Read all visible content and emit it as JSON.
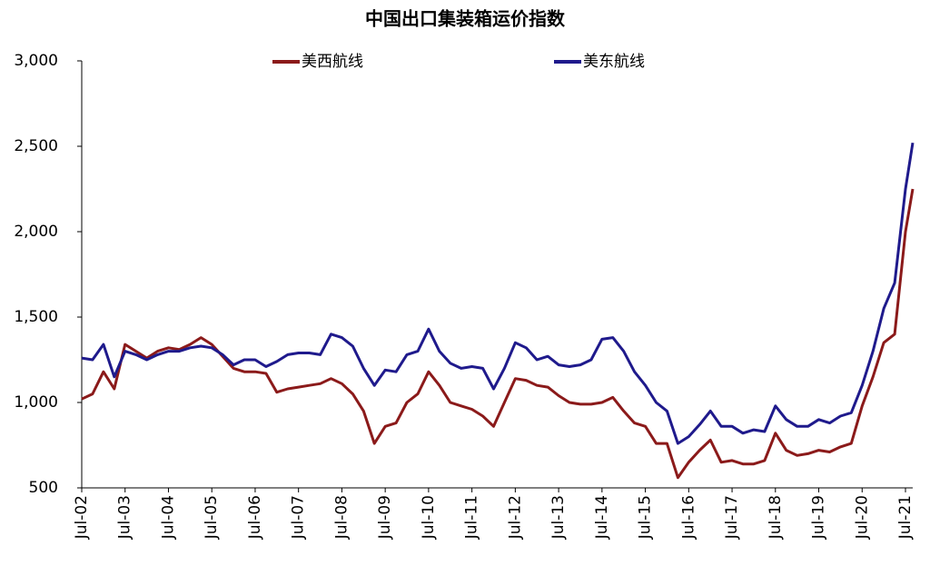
{
  "chart_data": {
    "type": "line",
    "title": "中国出口集装箱运价指数",
    "x": [
      "2002-07",
      "2002-10",
      "2003-01",
      "2003-04",
      "2003-07",
      "2003-10",
      "2004-01",
      "2004-04",
      "2004-07",
      "2004-10",
      "2005-01",
      "2005-04",
      "2005-07",
      "2005-10",
      "2006-01",
      "2006-04",
      "2006-07",
      "2006-10",
      "2007-01",
      "2007-04",
      "2007-07",
      "2007-10",
      "2008-01",
      "2008-04",
      "2008-07",
      "2008-10",
      "2009-01",
      "2009-04",
      "2009-07",
      "2009-10",
      "2010-01",
      "2010-04",
      "2010-07",
      "2010-10",
      "2011-01",
      "2011-04",
      "2011-07",
      "2011-10",
      "2012-01",
      "2012-04",
      "2012-07",
      "2012-10",
      "2013-01",
      "2013-04",
      "2013-07",
      "2013-10",
      "2014-01",
      "2014-04",
      "2014-07",
      "2014-10",
      "2015-01",
      "2015-04",
      "2015-07",
      "2015-10",
      "2016-01",
      "2016-04",
      "2016-07",
      "2016-10",
      "2017-01",
      "2017-04",
      "2017-07",
      "2017-10",
      "2018-01",
      "2018-04",
      "2018-07",
      "2018-10",
      "2019-01",
      "2019-04",
      "2019-07",
      "2019-10",
      "2020-01",
      "2020-04",
      "2020-07",
      "2020-10",
      "2021-01",
      "2021-04",
      "2021-07",
      "2021-09"
    ],
    "series": [
      {
        "name": "美西航线",
        "color": "#8b1a1a",
        "values": [
          1020,
          1050,
          1180,
          1080,
          1340,
          1300,
          1260,
          1300,
          1320,
          1310,
          1340,
          1380,
          1340,
          1270,
          1200,
          1180,
          1180,
          1170,
          1060,
          1080,
          1090,
          1100,
          1110,
          1140,
          1110,
          1050,
          950,
          760,
          860,
          880,
          1000,
          1050,
          1180,
          1100,
          1000,
          980,
          960,
          920,
          860,
          1000,
          1140,
          1130,
          1100,
          1090,
          1040,
          1000,
          990,
          990,
          1000,
          1030,
          950,
          880,
          860,
          760,
          760,
          560,
          650,
          720,
          780,
          650,
          660,
          640,
          640,
          660,
          820,
          720,
          690,
          700,
          720,
          710,
          740,
          760,
          980,
          1150,
          1350,
          1400,
          2000,
          2250
        ]
      },
      {
        "name": "美东航线",
        "color": "#1f1a8c",
        "values": [
          1260,
          1250,
          1340,
          1150,
          1300,
          1280,
          1250,
          1280,
          1300,
          1300,
          1320,
          1330,
          1320,
          1280,
          1220,
          1250,
          1250,
          1210,
          1240,
          1280,
          1290,
          1290,
          1280,
          1400,
          1380,
          1330,
          1200,
          1100,
          1190,
          1180,
          1280,
          1300,
          1430,
          1300,
          1230,
          1200,
          1210,
          1200,
          1080,
          1200,
          1350,
          1320,
          1250,
          1270,
          1220,
          1210,
          1220,
          1250,
          1370,
          1380,
          1300,
          1180,
          1100,
          1000,
          950,
          760,
          800,
          870,
          950,
          860,
          860,
          820,
          840,
          830,
          980,
          900,
          860,
          860,
          900,
          880,
          920,
          940,
          1100,
          1300,
          1550,
          1700,
          2250,
          2520
        ]
      }
    ],
    "xlim": [
      "2002-07",
      "2021-09"
    ],
    "xticks": [
      {
        "value": "2002-07",
        "label": "Jul-02"
      },
      {
        "value": "2003-07",
        "label": "Jul-03"
      },
      {
        "value": "2004-07",
        "label": "Jul-04"
      },
      {
        "value": "2005-07",
        "label": "Jul-05"
      },
      {
        "value": "2006-07",
        "label": "Jul-06"
      },
      {
        "value": "2007-07",
        "label": "Jul-07"
      },
      {
        "value": "2008-07",
        "label": "Jul-08"
      },
      {
        "value": "2009-07",
        "label": "Jul-09"
      },
      {
        "value": "2010-07",
        "label": "Jul-10"
      },
      {
        "value": "2011-07",
        "label": "Jul-11"
      },
      {
        "value": "2012-07",
        "label": "Jul-12"
      },
      {
        "value": "2013-07",
        "label": "Jul-13"
      },
      {
        "value": "2014-07",
        "label": "Jul-14"
      },
      {
        "value": "2015-07",
        "label": "Jul-15"
      },
      {
        "value": "2016-07",
        "label": "Jul-16"
      },
      {
        "value": "2017-07",
        "label": "Jul-17"
      },
      {
        "value": "2018-07",
        "label": "Jul-18"
      },
      {
        "value": "2019-07",
        "label": "Jul-19"
      },
      {
        "value": "2020-07",
        "label": "Jul-20"
      },
      {
        "value": "2021-07",
        "label": "Jul-21"
      }
    ],
    "ylim": [
      500,
      3000
    ],
    "yticks": [
      500,
      {
        "value": 1000,
        "label": "1,000"
      },
      {
        "value": 1500,
        "label": "1,500"
      },
      {
        "value": 2000,
        "label": "2,000"
      },
      {
        "value": 2500,
        "label": "2,500"
      },
      {
        "value": 3000,
        "label": "3,000"
      }
    ],
    "legend": "top",
    "grid": false
  }
}
